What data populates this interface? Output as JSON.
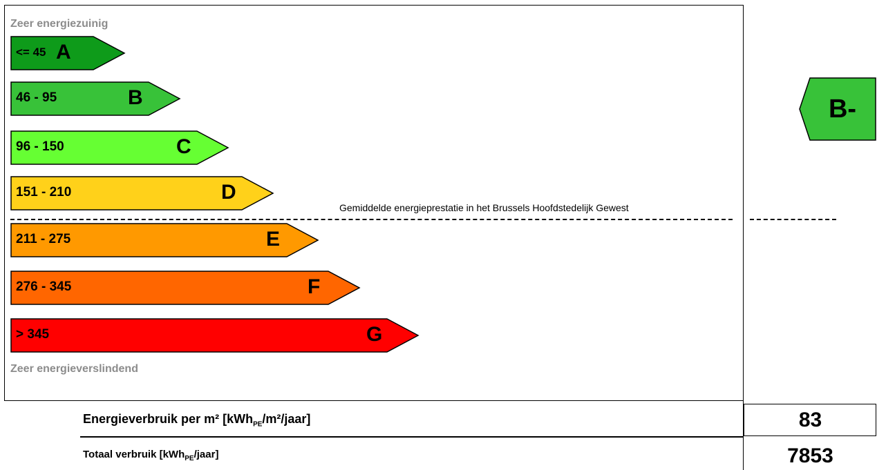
{
  "label": {
    "top_caption": "Zeer energiezuinig",
    "bottom_caption": "Zeer energieverslindend",
    "average_text": "Gemiddelde energieprestatie in het Brussels Hoofdstedelijk Gewest",
    "classes": [
      {
        "letter": "A",
        "range": "<= 45",
        "color": "#0e9b1a"
      },
      {
        "letter": "B",
        "range": "46 - 95",
        "color": "#38c239"
      },
      {
        "letter": "C",
        "range": "96 - 150",
        "color": "#66ff33"
      },
      {
        "letter": "D",
        "range": "151 - 210",
        "color": "#ffd11a"
      },
      {
        "letter": "E",
        "range": "211 - 275",
        "color": "#ff9900"
      },
      {
        "letter": "F",
        "range": "276 - 345",
        "color": "#ff6600"
      },
      {
        "letter": "G",
        "range": "> 345",
        "color": "#ff0000"
      }
    ],
    "rating": {
      "text": "B-",
      "color": "#38c239"
    }
  },
  "footer": {
    "row1_label": "Energieverbruik per m² [kWh",
    "row1_sub": "PE",
    "row1_suffix": "/m²/jaar]",
    "row1_value": "83",
    "row2_label": "Totaal verbruik [kWh",
    "row2_sub": "PE",
    "row2_suffix": "/jaar]",
    "row2_value": "7853"
  }
}
